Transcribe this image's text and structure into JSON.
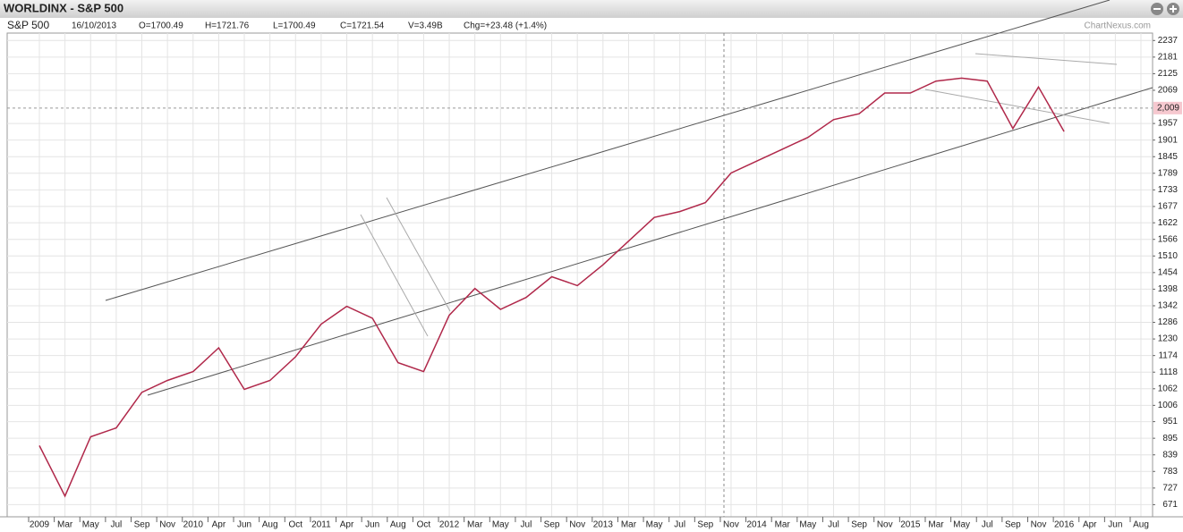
{
  "chart_data": {
    "type": "line",
    "title": "WORLDINX - S&P 500",
    "symbol": "S&P 500",
    "date": "16/10/2013",
    "info": [
      "O=1700.49",
      "H=1721.76",
      "L=1700.49",
      "C=1721.54",
      "V=3.49B",
      "Chg=+23.48 (+1.4%)"
    ],
    "watermark": "ChartNexus.com",
    "categories": [
      "2009",
      "Mar",
      "May",
      "Jul",
      "Sep",
      "Nov",
      "2010",
      "Apr",
      "Jun",
      "Aug",
      "Oct",
      "2011",
      "Apr",
      "Jun",
      "Aug",
      "Oct",
      "2012",
      "Mar",
      "May",
      "Jul",
      "Sep",
      "Nov",
      "2013",
      "Mar",
      "May",
      "Jul",
      "Sep",
      "Nov",
      "2014",
      "Mar",
      "May",
      "Jul",
      "Sep",
      "Nov",
      "2015",
      "Mar",
      "May",
      "Jul",
      "Sep",
      "Nov",
      "2016",
      "Apr",
      "Jun",
      "Aug"
    ],
    "series": [
      {
        "name": "S&P 500",
        "color": "#b0284a",
        "values": [
          870,
          700,
          900,
          930,
          1050,
          1090,
          1120,
          1200,
          1060,
          1090,
          1170,
          1280,
          1340,
          1300,
          1150,
          1120,
          1310,
          1400,
          1330,
          1370,
          1440,
          1410,
          1480,
          1560,
          1640,
          1660,
          1690,
          1790,
          1830,
          1870,
          1910,
          1970,
          1990,
          2060,
          2060,
          2100,
          2110,
          2100,
          1940,
          2080,
          1930,
          null,
          null,
          null
        ]
      }
    ],
    "ylim": [
      630,
      2262
    ],
    "yticks": [
      671,
      727,
      783,
      839,
      895,
      951,
      1006,
      1062,
      1118,
      1174,
      1230,
      1286,
      1342,
      1398,
      1454,
      1510,
      1566,
      1622,
      1677,
      1733,
      1789,
      1845,
      1901,
      1957,
      2069,
      2125,
      2181,
      2237
    ],
    "current_level": {
      "value": 2009,
      "label": "2,009"
    },
    "grid": true
  }
}
